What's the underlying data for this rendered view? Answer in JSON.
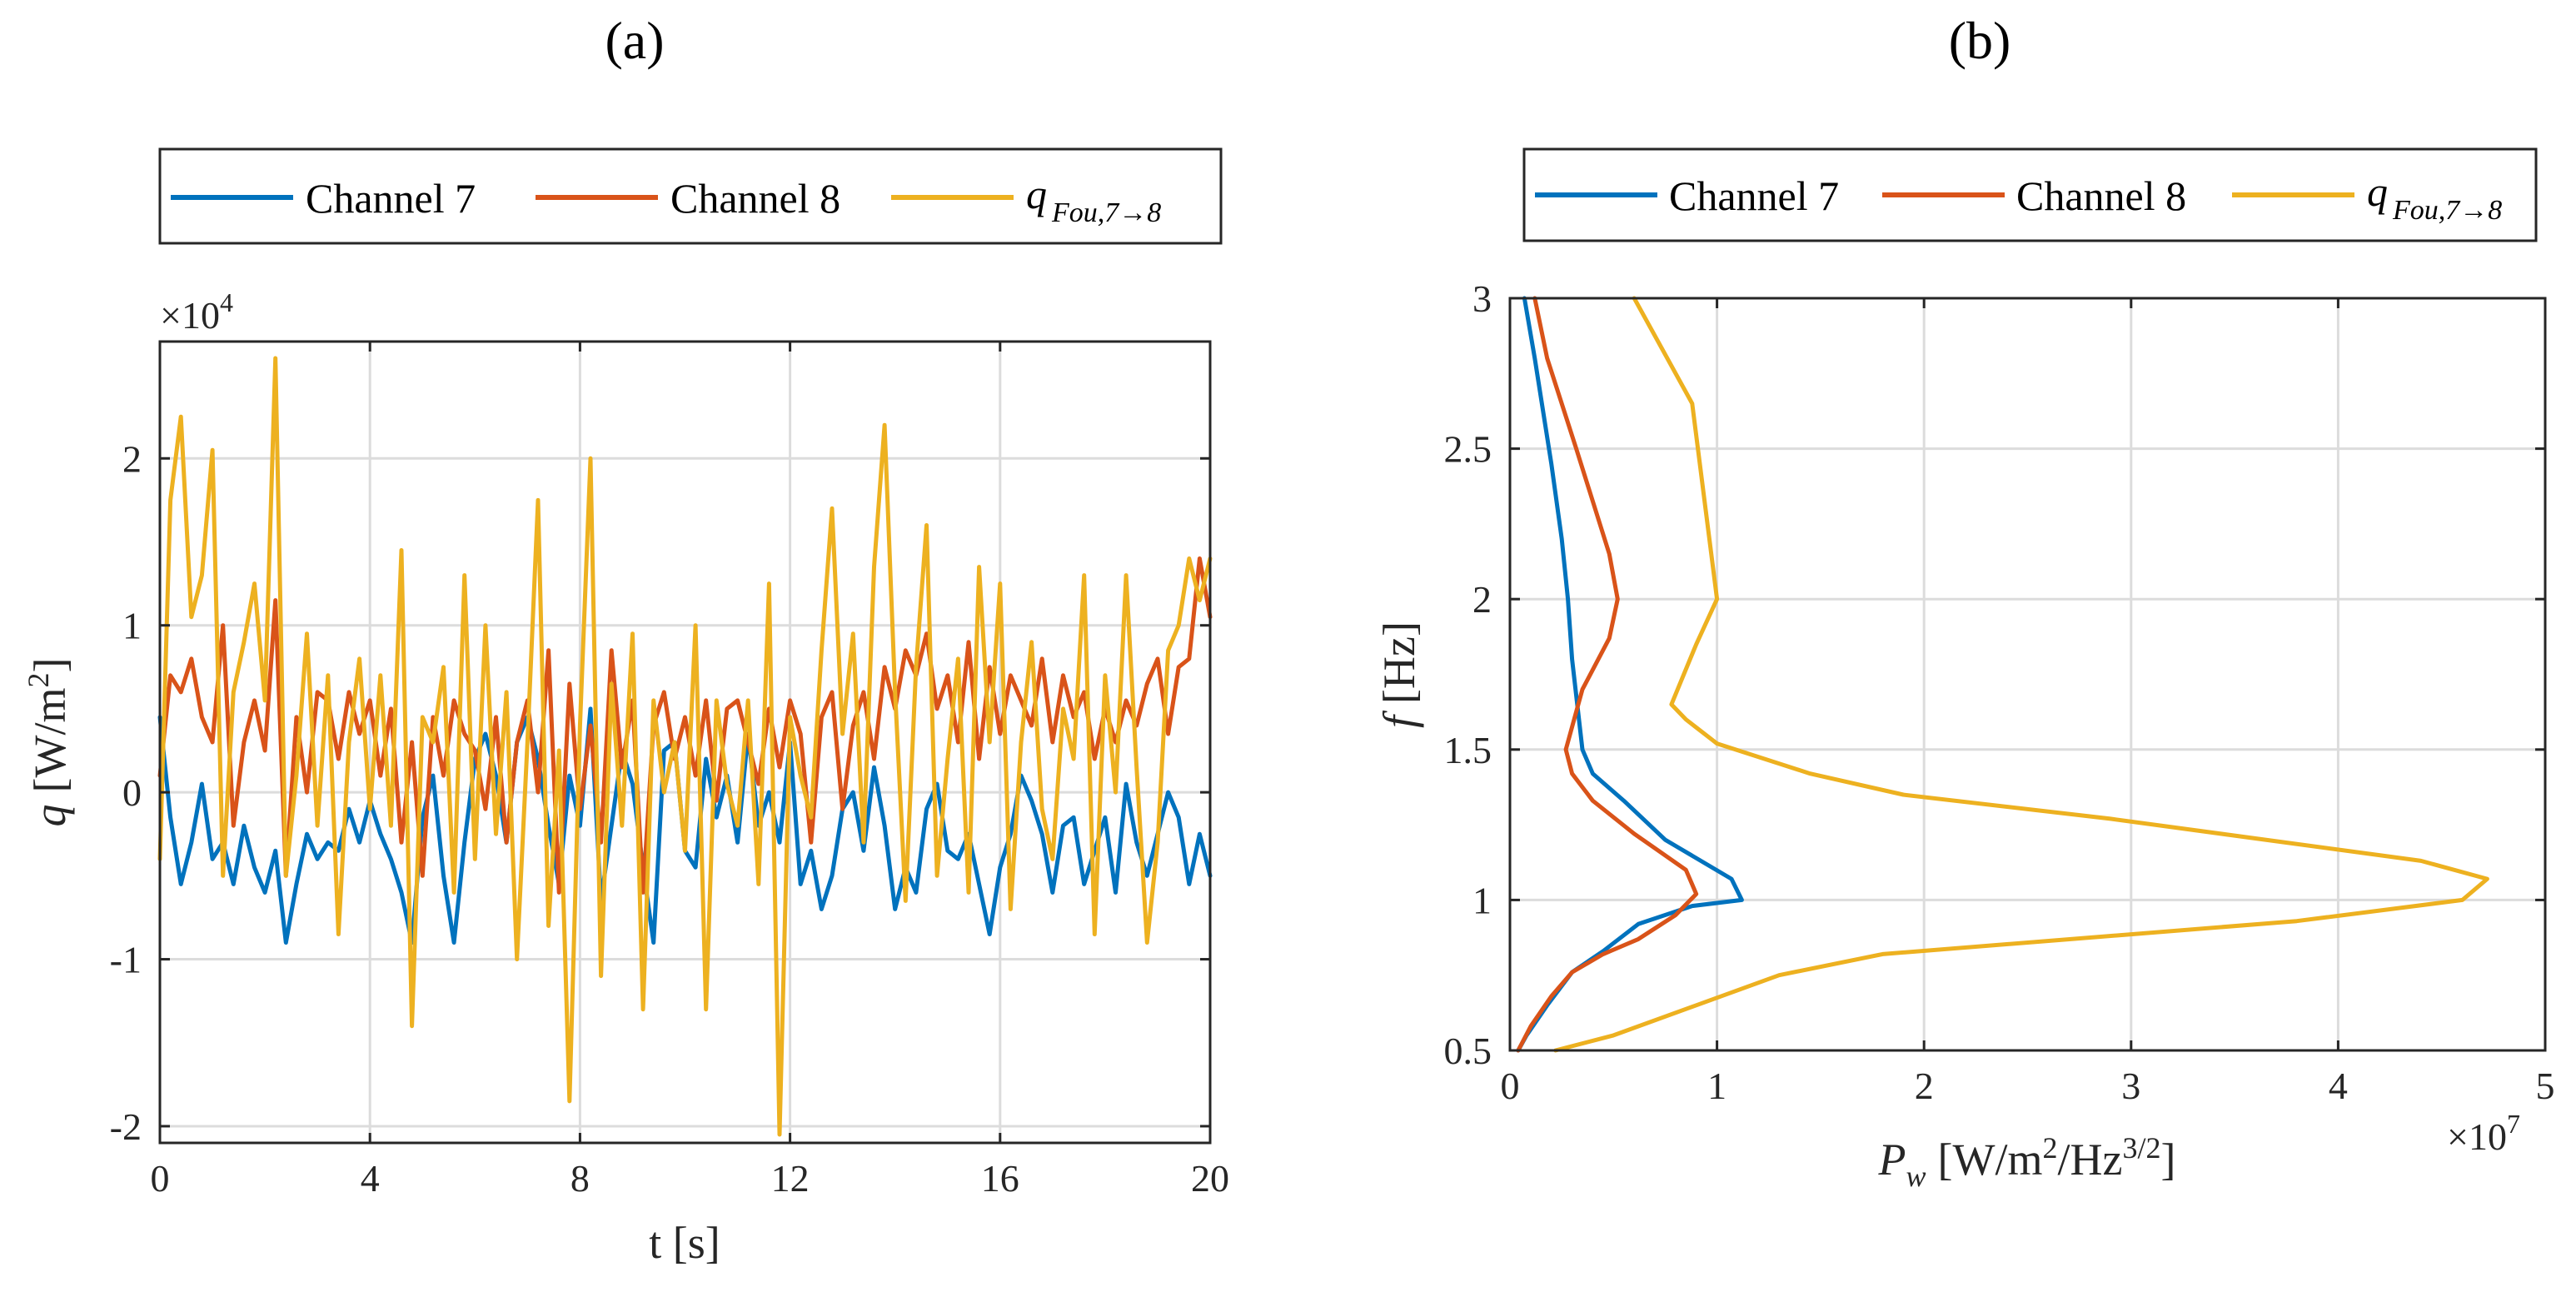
{
  "chart_data": [
    {
      "type": "line",
      "panel_label": "(a)",
      "xlabel": "t [s]",
      "ylabel_var": "q",
      "ylabel_unit": "[W/m",
      "ylabel_sup": "2",
      "ylabel_close": "]",
      "y_multiplier": "×10",
      "y_multiplier_exp": "4",
      "xlim": [
        0,
        20
      ],
      "ylim": [
        -2.1,
        2.7
      ],
      "xticks": [
        0,
        4,
        8,
        12,
        16,
        20
      ],
      "xtick_labels": [
        "0",
        "4",
        "8",
        "12",
        "16",
        "20"
      ],
      "yticks": [
        -2,
        -1,
        0,
        1,
        2
      ],
      "ytick_labels": [
        "-2",
        "-1",
        "0",
        "1",
        "2"
      ],
      "grid": true,
      "legend": {
        "placement": "top",
        "entries": [
          {
            "text": "Channel 7"
          },
          {
            "text": "Channel 8"
          },
          {
            "text": "q",
            "sub": "Fou,7→8"
          }
        ]
      },
      "series": [
        {
          "name": "Channel 7",
          "color": "#0072BD",
          "x": [
            0,
            0.2,
            0.4,
            0.6,
            0.8,
            1.0,
            1.2,
            1.4,
            1.6,
            1.8,
            2.0,
            2.2,
            2.4,
            2.6,
            2.8,
            3.0,
            3.2,
            3.4,
            3.6,
            3.8,
            4.0,
            4.2,
            4.4,
            4.6,
            4.8,
            5.0,
            5.2,
            5.4,
            5.6,
            5.8,
            6.0,
            6.2,
            6.4,
            6.6,
            6.8,
            7.0,
            7.2,
            7.4,
            7.6,
            7.8,
            8.0,
            8.2,
            8.4,
            8.6,
            8.8,
            9.0,
            9.2,
            9.4,
            9.6,
            9.8,
            10.0,
            10.2,
            10.4,
            10.6,
            10.8,
            11.0,
            11.2,
            11.4,
            11.6,
            11.8,
            12.0,
            12.2,
            12.4,
            12.6,
            12.8,
            13.0,
            13.2,
            13.4,
            13.6,
            13.8,
            14.0,
            14.2,
            14.4,
            14.6,
            14.8,
            15.0,
            15.2,
            15.4,
            15.6,
            15.8,
            16.0,
            16.2,
            16.4,
            16.6,
            16.8,
            17.0,
            17.2,
            17.4,
            17.6,
            17.8,
            18.0,
            18.2,
            18.4,
            18.6,
            18.8,
            19.0,
            19.2,
            19.4,
            19.6,
            19.8,
            20.0
          ],
          "values": [
            0.45,
            -0.15,
            -0.55,
            -0.3,
            0.05,
            -0.4,
            -0.3,
            -0.55,
            -0.2,
            -0.45,
            -0.6,
            -0.35,
            -0.9,
            -0.55,
            -0.25,
            -0.4,
            -0.3,
            -0.35,
            -0.1,
            -0.3,
            -0.05,
            -0.25,
            -0.4,
            -0.6,
            -0.9,
            -0.15,
            0.1,
            -0.5,
            -0.9,
            -0.3,
            0.2,
            0.35,
            0.1,
            -0.3,
            0.3,
            0.45,
            0.2,
            -0.2,
            -0.55,
            0.1,
            -0.2,
            0.5,
            -0.65,
            -0.2,
            0.25,
            0.05,
            -0.45,
            -0.9,
            0.25,
            0.3,
            -0.35,
            -0.45,
            0.2,
            -0.15,
            0.1,
            -0.3,
            0.35,
            -0.2,
            0.0,
            -0.3,
            0.3,
            -0.55,
            -0.35,
            -0.7,
            -0.5,
            -0.1,
            0.0,
            -0.35,
            0.15,
            -0.2,
            -0.7,
            -0.45,
            -0.6,
            -0.1,
            0.05,
            -0.35,
            -0.4,
            -0.25,
            -0.55,
            -0.85,
            -0.45,
            -0.25,
            0.1,
            -0.05,
            -0.25,
            -0.6,
            -0.2,
            -0.15,
            -0.55,
            -0.35,
            -0.15,
            -0.6,
            0.05,
            -0.3,
            -0.5,
            -0.25,
            0.0,
            -0.15,
            -0.55,
            -0.25,
            -0.5
          ]
        },
        {
          "name": "Channel 8",
          "color": "#D95319",
          "x": [
            0,
            0.2,
            0.4,
            0.6,
            0.8,
            1.0,
            1.2,
            1.4,
            1.6,
            1.8,
            2.0,
            2.2,
            2.4,
            2.6,
            2.8,
            3.0,
            3.2,
            3.4,
            3.6,
            3.8,
            4.0,
            4.2,
            4.4,
            4.6,
            4.8,
            5.0,
            5.2,
            5.4,
            5.6,
            5.8,
            6.0,
            6.2,
            6.4,
            6.6,
            6.8,
            7.0,
            7.2,
            7.4,
            7.6,
            7.8,
            8.0,
            8.2,
            8.4,
            8.6,
            8.8,
            9.0,
            9.2,
            9.4,
            9.6,
            9.8,
            10.0,
            10.2,
            10.4,
            10.6,
            10.8,
            11.0,
            11.2,
            11.4,
            11.6,
            11.8,
            12.0,
            12.2,
            12.4,
            12.6,
            12.8,
            13.0,
            13.2,
            13.4,
            13.6,
            13.8,
            14.0,
            14.2,
            14.4,
            14.6,
            14.8,
            15.0,
            15.2,
            15.4,
            15.6,
            15.8,
            16.0,
            16.2,
            16.4,
            16.6,
            16.8,
            17.0,
            17.2,
            17.4,
            17.6,
            17.8,
            18.0,
            18.2,
            18.4,
            18.6,
            18.8,
            19.0,
            19.2,
            19.4,
            19.6,
            19.8,
            20.0
          ],
          "values": [
            0.1,
            0.7,
            0.6,
            0.8,
            0.45,
            0.3,
            1.0,
            -0.2,
            0.3,
            0.55,
            0.25,
            1.15,
            -0.5,
            0.45,
            0.0,
            0.6,
            0.55,
            0.2,
            0.6,
            0.35,
            0.55,
            0.1,
            0.5,
            -0.3,
            0.3,
            -0.5,
            0.45,
            0.1,
            0.55,
            0.35,
            0.25,
            -0.1,
            0.45,
            -0.3,
            0.3,
            0.55,
            0.0,
            0.85,
            -0.6,
            0.65,
            -0.1,
            0.4,
            -0.3,
            0.85,
            0.15,
            0.55,
            -0.6,
            0.4,
            0.6,
            0.2,
            0.45,
            0.1,
            0.55,
            -0.05,
            0.5,
            0.55,
            0.3,
            0.05,
            0.5,
            0.15,
            0.55,
            0.35,
            -0.3,
            0.45,
            0.6,
            -0.1,
            0.4,
            0.6,
            0.2,
            0.75,
            0.5,
            0.85,
            0.7,
            0.95,
            0.5,
            0.7,
            0.3,
            0.9,
            0.2,
            0.75,
            0.35,
            0.7,
            0.55,
            0.4,
            0.8,
            0.3,
            0.7,
            0.45,
            0.6,
            0.2,
            0.5,
            0.3,
            0.55,
            0.4,
            0.65,
            0.8,
            0.35,
            0.75,
            0.8,
            1.4,
            1.05
          ]
        },
        {
          "name": "q Fou,7→8",
          "color": "#EDB120",
          "x": [
            0,
            0.2,
            0.4,
            0.6,
            0.8,
            1.0,
            1.2,
            1.4,
            1.6,
            1.8,
            2.0,
            2.2,
            2.4,
            2.6,
            2.8,
            3.0,
            3.2,
            3.4,
            3.6,
            3.8,
            4.0,
            4.2,
            4.4,
            4.6,
            4.8,
            5.0,
            5.2,
            5.4,
            5.6,
            5.8,
            6.0,
            6.2,
            6.4,
            6.6,
            6.8,
            7.0,
            7.2,
            7.4,
            7.6,
            7.8,
            8.0,
            8.2,
            8.4,
            8.6,
            8.8,
            9.0,
            9.2,
            9.4,
            9.6,
            9.8,
            10.0,
            10.2,
            10.4,
            10.6,
            10.8,
            11.0,
            11.2,
            11.4,
            11.6,
            11.8,
            12.0,
            12.2,
            12.4,
            12.6,
            12.8,
            13.0,
            13.2,
            13.4,
            13.6,
            13.8,
            14.0,
            14.2,
            14.4,
            14.6,
            14.8,
            15.0,
            15.2,
            15.4,
            15.6,
            15.8,
            16.0,
            16.2,
            16.4,
            16.6,
            16.8,
            17.0,
            17.2,
            17.4,
            17.6,
            17.8,
            18.0,
            18.2,
            18.4,
            18.6,
            18.8,
            19.0,
            19.2,
            19.4,
            19.6,
            19.8,
            20.0
          ],
          "values": [
            -0.4,
            1.75,
            2.25,
            1.05,
            1.3,
            2.05,
            -0.5,
            0.6,
            0.9,
            1.25,
            0.55,
            2.6,
            -0.5,
            0.1,
            0.95,
            -0.2,
            0.7,
            -0.85,
            0.3,
            0.8,
            -0.1,
            0.7,
            -0.2,
            1.45,
            -1.4,
            0.45,
            0.3,
            0.75,
            -0.6,
            1.3,
            -0.4,
            1.0,
            -0.25,
            0.6,
            -1.0,
            0.3,
            1.75,
            -0.8,
            0.25,
            -1.85,
            0.4,
            2.0,
            -1.1,
            0.65,
            -0.2,
            0.95,
            -1.3,
            0.55,
            0.0,
            0.3,
            -0.35,
            1.0,
            -1.3,
            0.55,
            0.05,
            -0.2,
            0.55,
            -0.55,
            1.25,
            -2.05,
            0.45,
            0.1,
            -0.15,
            0.85,
            1.7,
            0.35,
            0.95,
            -0.3,
            1.35,
            2.2,
            0.6,
            -0.65,
            0.75,
            1.6,
            -0.5,
            0.2,
            0.8,
            -0.6,
            1.35,
            0.3,
            1.25,
            -0.7,
            0.3,
            0.9,
            -0.1,
            -0.4,
            0.5,
            0.2,
            1.3,
            -0.85,
            0.7,
            0.0,
            1.3,
            0.15,
            -0.9,
            -0.3,
            0.85,
            1.0,
            1.4,
            1.15,
            1.4
          ]
        }
      ]
    },
    {
      "type": "line",
      "panel_label": "(b)",
      "xlabel_var": "P",
      "xlabel_sub": "w",
      "xlabel_unit_a": "[W/m",
      "xlabel_sup_a": "2",
      "xlabel_unit_b": "/Hz",
      "xlabel_sup_b": "3/2",
      "xlabel_close": "]",
      "ylabel_var": "f",
      "ylabel_unit": "[Hz]",
      "x_multiplier": "×10",
      "x_multiplier_exp": "7",
      "xlim": [
        0,
        5
      ],
      "ylim": [
        0.5,
        3
      ],
      "xticks": [
        0,
        1,
        2,
        3,
        4,
        5
      ],
      "xtick_labels": [
        "0",
        "1",
        "2",
        "3",
        "4",
        "5"
      ],
      "yticks": [
        0.5,
        1,
        1.5,
        2,
        2.5,
        3
      ],
      "ytick_labels": [
        "0.5",
        "1",
        "1.5",
        "2",
        "2.5",
        "3"
      ],
      "grid": true,
      "legend": {
        "placement": "top",
        "entries": [
          {
            "text": "Channel 7"
          },
          {
            "text": "Channel 8"
          },
          {
            "text": "q",
            "sub": "Fou,7→8"
          }
        ]
      },
      "series": [
        {
          "name": "Channel 7",
          "color": "#0072BD",
          "x": [
            0.04,
            0.08,
            0.18,
            0.3,
            0.45,
            0.62,
            0.88,
            1.12,
            1.07,
            0.75,
            0.55,
            0.4,
            0.35,
            0.3,
            0.28,
            0.25,
            0.2,
            0.12,
            0.07
          ],
          "y": [
            0.5,
            0.55,
            0.65,
            0.76,
            0.83,
            0.92,
            0.98,
            1.0,
            1.07,
            1.2,
            1.33,
            1.42,
            1.5,
            1.8,
            2.0,
            2.2,
            2.45,
            2.8,
            3.0
          ]
        },
        {
          "name": "Channel 8",
          "color": "#D95319",
          "x": [
            0.04,
            0.1,
            0.2,
            0.3,
            0.45,
            0.62,
            0.8,
            0.9,
            0.85,
            0.6,
            0.4,
            0.3,
            0.27,
            0.35,
            0.48,
            0.52,
            0.48,
            0.32,
            0.18,
            0.12
          ],
          "y": [
            0.5,
            0.58,
            0.68,
            0.76,
            0.82,
            0.87,
            0.95,
            1.02,
            1.1,
            1.22,
            1.33,
            1.42,
            1.5,
            1.7,
            1.87,
            2.0,
            2.15,
            2.5,
            2.8,
            3.0
          ]
        },
        {
          "name": "q Fou,7→8",
          "color": "#EDB120",
          "x": [
            0.22,
            0.5,
            0.9,
            1.3,
            1.8,
            3.8,
            4.6,
            4.72,
            4.4,
            2.9,
            1.9,
            1.45,
            1.0,
            0.85,
            0.78,
            0.9,
            1.0,
            0.88,
            0.6
          ],
          "y": [
            0.5,
            0.55,
            0.65,
            0.75,
            0.82,
            0.93,
            1.0,
            1.07,
            1.13,
            1.27,
            1.35,
            1.42,
            1.52,
            1.6,
            1.65,
            1.85,
            2.0,
            2.65,
            3.0
          ]
        }
      ]
    }
  ]
}
